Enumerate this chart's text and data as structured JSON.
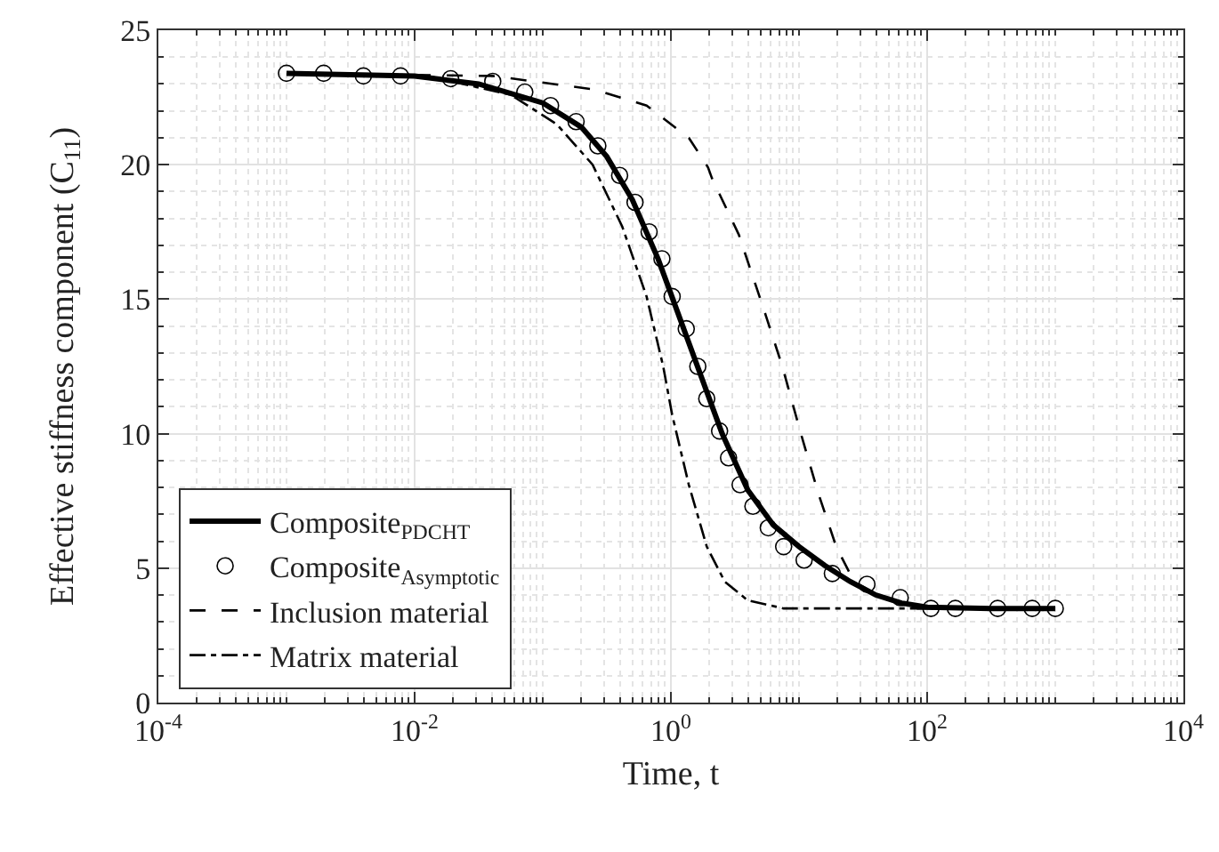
{
  "chart_data": {
    "type": "line",
    "xlabel": "Time, t",
    "ylabel": "Effective stiffness component (C$_{11}$)",
    "log": "x",
    "grid": true,
    "legend": "bottom left",
    "xlim": [
      0.0001,
      10000
    ],
    "xticks": [
      {
        "value": 0.0001,
        "label": "10$^{-4}$"
      },
      {
        "value": 0.01,
        "label": "10$^{-2}$"
      },
      {
        "value": 1,
        "label": "10$^{0}$"
      },
      {
        "value": 100,
        "label": "10$^{2}$"
      },
      {
        "value": 10000,
        "label": "10$^{4}$"
      }
    ],
    "ylim": [
      0,
      25
    ],
    "yticks": [
      0,
      5,
      10,
      15,
      20,
      25
    ],
    "series": [
      {
        "name": "Composite$_{PDCHT}$",
        "line_style": "solid",
        "color": "#000000",
        "x": [
          0.001,
          0.01,
          0.0316,
          0.1,
          0.2,
          0.316,
          0.5,
          0.794,
          1,
          1.585,
          2.512,
          3.981,
          6.31,
          10,
          15.85,
          25.12,
          39.81,
          63.1,
          100,
          316,
          1000
        ],
        "values": [
          23.4,
          23.3,
          23.0,
          22.3,
          21.4,
          20.3,
          18.7,
          16.5,
          15.2,
          12.6,
          10.0,
          7.9,
          6.6,
          5.8,
          5.1,
          4.5,
          4.0,
          3.7,
          3.55,
          3.5,
          3.5
        ]
      },
      {
        "name": "Composite$_{Asymptotic}$",
        "type": "scatter",
        "marker": "circle",
        "color": "#000000",
        "x": [
          0.001,
          0.00195,
          0.00398,
          0.00776,
          0.0191,
          0.0407,
          0.0724,
          0.115,
          0.182,
          0.269,
          0.398,
          0.525,
          0.676,
          0.851,
          1.023,
          1.318,
          1.622,
          1.905,
          2.399,
          2.818,
          3.467,
          4.365,
          5.754,
          7.586,
          10.96,
          18.2,
          33.9,
          61.7,
          107,
          166,
          355,
          661,
          1000
        ],
        "values": [
          23.4,
          23.4,
          23.3,
          23.3,
          23.2,
          23.1,
          22.7,
          22.2,
          21.6,
          20.7,
          19.6,
          18.6,
          17.5,
          16.5,
          15.1,
          13.9,
          12.5,
          11.3,
          10.1,
          9.1,
          8.1,
          7.3,
          6.5,
          5.8,
          5.3,
          4.8,
          4.4,
          3.9,
          3.5,
          3.5,
          3.5,
          3.5,
          3.5
        ]
      },
      {
        "name": "Inclusion material",
        "line_style": "dashed",
        "color": "#000000",
        "x": [
          0.001,
          0.0407,
          0.251,
          0.646,
          1.38,
          1.95,
          2.09,
          3.39,
          5.5,
          7.41,
          10.2,
          14.1,
          19.5,
          26.9,
          40.7,
          77.6,
          1000
        ],
        "values": [
          23.4,
          23.3,
          22.8,
          22.2,
          21.0,
          19.9,
          19.5,
          17.4,
          14.4,
          12.5,
          10.1,
          7.8,
          5.8,
          4.5,
          4.0,
          3.5,
          3.5
        ]
      },
      {
        "name": "Matrix material",
        "line_style": "dashdot",
        "color": "#000000",
        "x": [
          0.002,
          0.0126,
          0.0562,
          0.129,
          0.245,
          0.417,
          0.646,
          0.871,
          1.023,
          1.38,
          1.905,
          2.63,
          3.98,
          7.59,
          1000
        ],
        "values": [
          23.4,
          23.3,
          22.6,
          21.5,
          20.0,
          17.7,
          15.1,
          12.5,
          10.7,
          8.1,
          5.8,
          4.5,
          3.8,
          3.5,
          3.5
        ]
      }
    ]
  }
}
